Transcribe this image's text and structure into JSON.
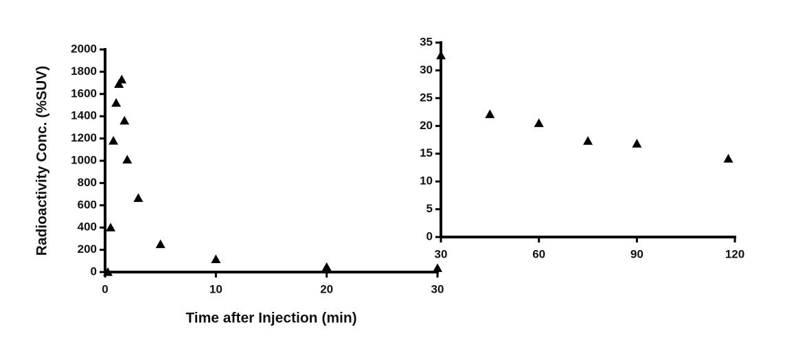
{
  "chart_data": [
    {
      "type": "scatter",
      "xlabel": "Time after Injection (min)",
      "ylabel": "Radioactivity Conc. (%SUV)",
      "x": [
        0.25,
        0.5,
        0.75,
        1,
        1.25,
        1.5,
        1.75,
        2,
        3,
        5,
        10,
        20,
        30
      ],
      "values": [
        0,
        400,
        1180,
        1520,
        1690,
        1730,
        1360,
        1010,
        665,
        250,
        115,
        45,
        35
      ],
      "color": "#000000",
      "xlim": [
        0,
        30
      ],
      "xticks": [
        0,
        10,
        20,
        30
      ],
      "ylim": [
        0,
        2000
      ],
      "yticks": [
        0,
        200,
        400,
        600,
        800,
        1000,
        1200,
        1400,
        1600,
        1800,
        2000
      ]
    },
    {
      "type": "scatter",
      "x": [
        30,
        45,
        60,
        75,
        90,
        118
      ],
      "values": [
        32.7,
        22.1,
        20.5,
        17.3,
        16.8,
        14.1
      ],
      "color": "#000000",
      "xlim": [
        30,
        120
      ],
      "xticks": [
        30,
        60,
        90,
        120
      ],
      "ylim": [
        0,
        35
      ],
      "yticks": [
        0,
        5,
        10,
        15,
        20,
        25,
        30,
        35
      ]
    }
  ]
}
